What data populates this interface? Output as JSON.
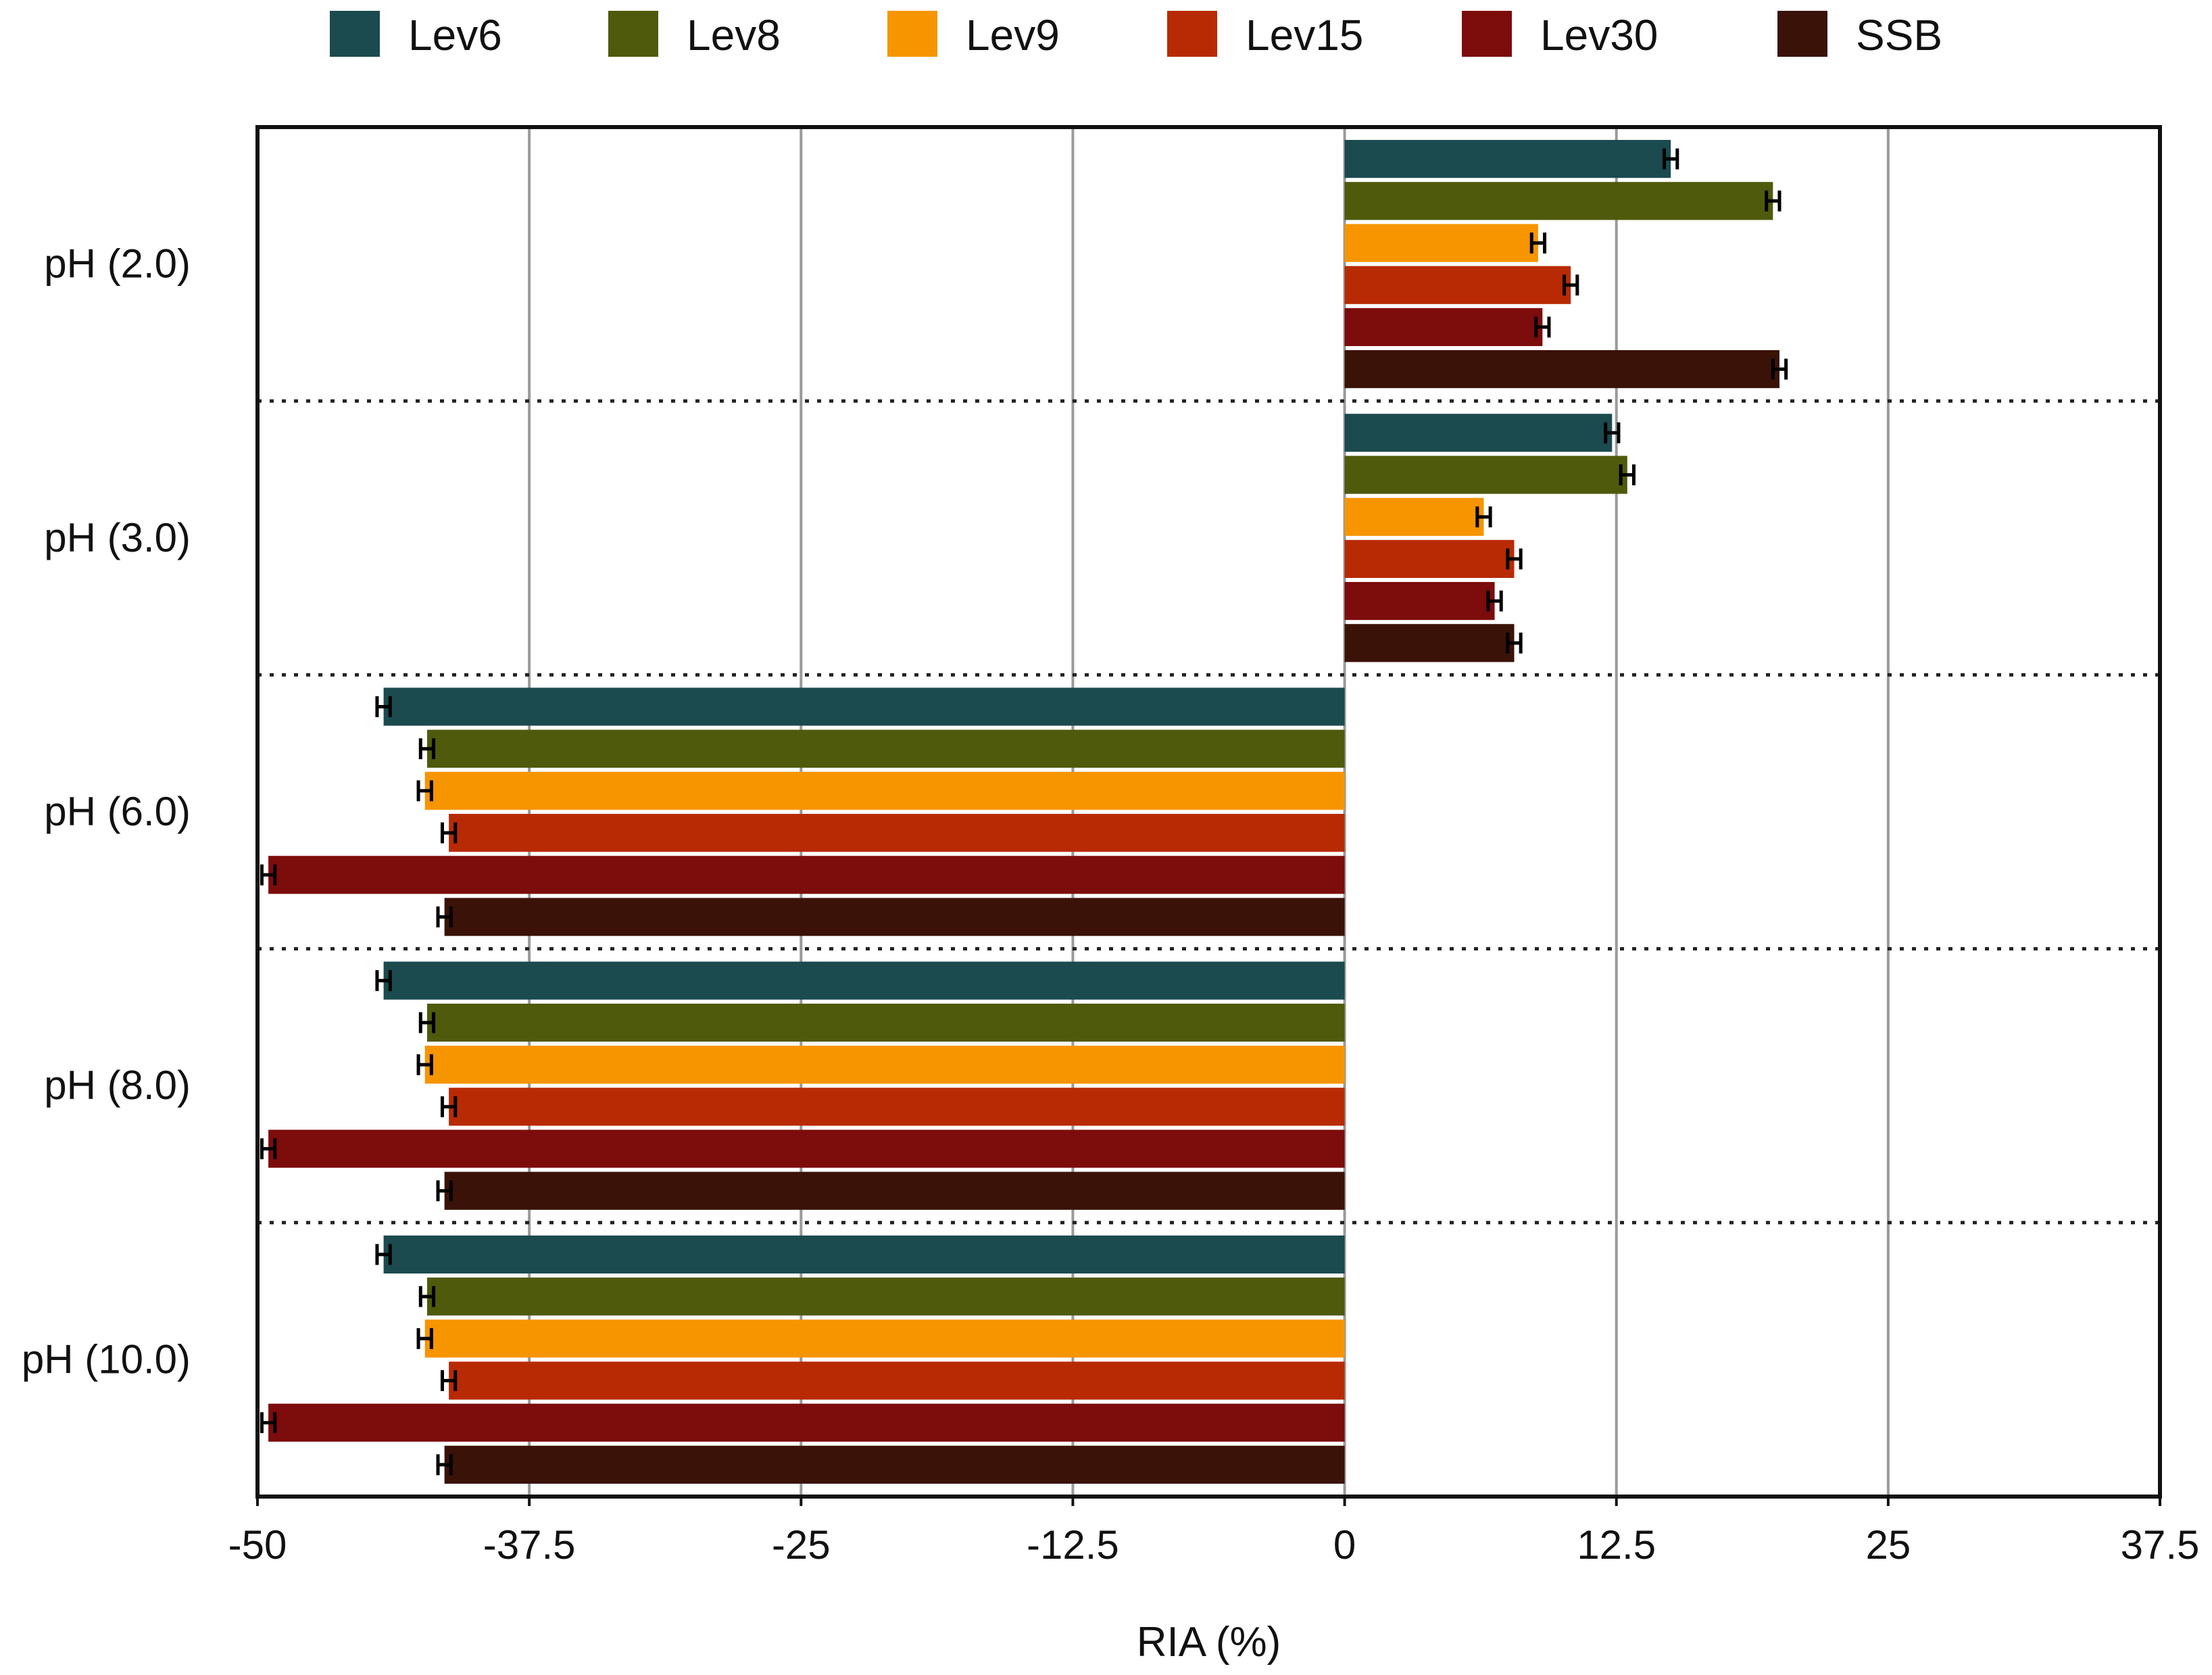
{
  "chart_data": {
    "type": "bar",
    "orientation": "horizontal",
    "title": "",
    "xlabel": "RIA (%)",
    "ylabel": "",
    "xlim": [
      -50,
      37.5
    ],
    "xticks": [
      -50,
      -37.5,
      -25,
      -12.5,
      0,
      12.5,
      25,
      37.5
    ],
    "xtick_labels": [
      "-50",
      "-37.5",
      "-25",
      "-12.5",
      "0",
      "12.5",
      "25",
      "37.5"
    ],
    "grid": "vertical",
    "legend_position": "top",
    "categories": [
      "pH (2.0)",
      "pH (3.0)",
      "pH (6.0)",
      "pH (8.0)",
      "pH (10.0)"
    ],
    "series": [
      {
        "name": "Lev6",
        "color": "#1b4a4f",
        "values": [
          15.0,
          12.3,
          -44.2,
          -44.2,
          -44.2
        ],
        "errors": [
          0.3,
          0.3,
          0.3,
          0.3,
          0.3
        ]
      },
      {
        "name": "Lev8",
        "color": "#4f5a0c",
        "values": [
          19.7,
          13.0,
          -42.2,
          -42.2,
          -42.2
        ],
        "errors": [
          0.3,
          0.3,
          0.3,
          0.3,
          0.3
        ]
      },
      {
        "name": "Lev9",
        "color": "#f79500",
        "values": [
          8.9,
          6.4,
          -42.3,
          -42.3,
          -42.3
        ],
        "errors": [
          0.3,
          0.3,
          0.3,
          0.3,
          0.3
        ]
      },
      {
        "name": "Lev15",
        "color": "#b82a04",
        "values": [
          10.4,
          7.8,
          -41.2,
          -41.2,
          -41.2
        ],
        "errors": [
          0.3,
          0.3,
          0.3,
          0.3,
          0.3
        ]
      },
      {
        "name": "Lev30",
        "color": "#7d0c0c",
        "values": [
          9.1,
          6.9,
          -49.5,
          -49.5,
          -49.5
        ],
        "errors": [
          0.3,
          0.3,
          0.3,
          0.3,
          0.3
        ]
      },
      {
        "name": "SSB",
        "color": "#3a1208",
        "values": [
          20.0,
          7.8,
          -41.4,
          -41.4,
          -41.4
        ],
        "errors": [
          0.3,
          0.3,
          0.3,
          0.3,
          0.3
        ]
      }
    ]
  },
  "colors": {
    "grid": "#9a9a9a",
    "frame": "#111111",
    "separator": "#222222",
    "error_bar": "#000000"
  }
}
